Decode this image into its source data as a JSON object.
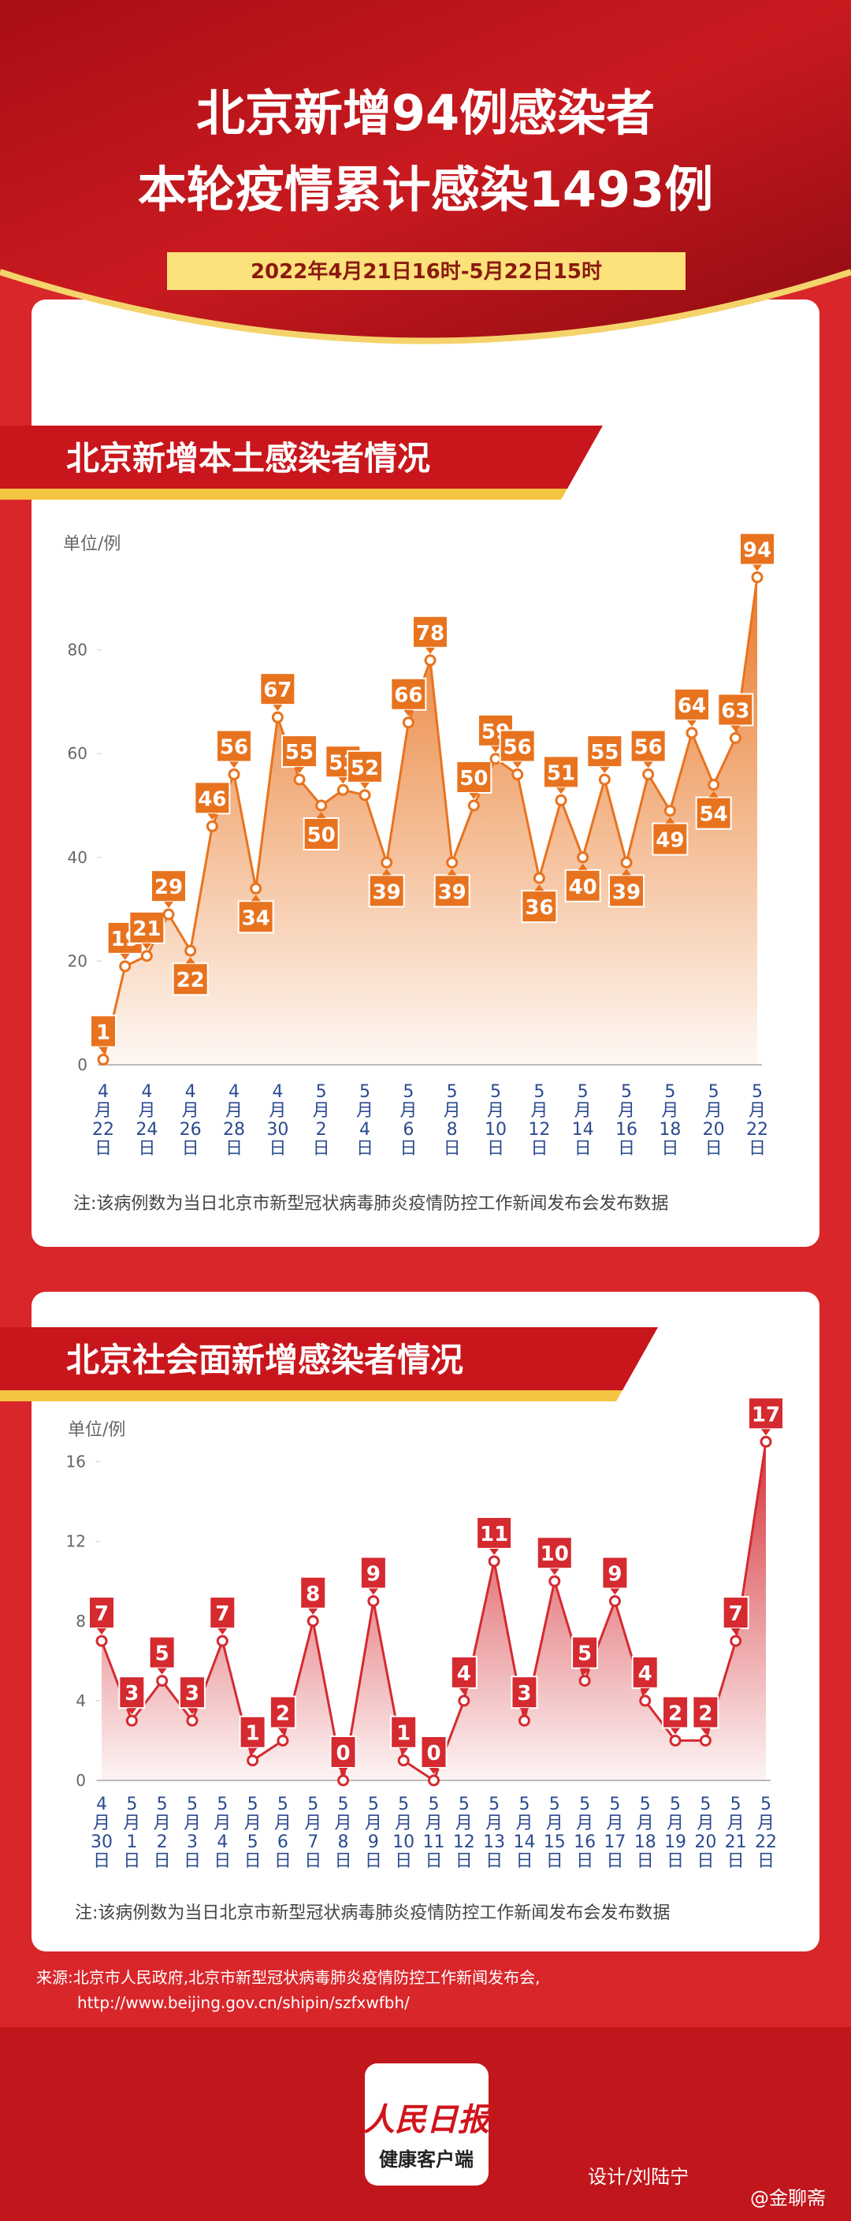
{
  "header": {
    "title_lines": [
      "北京新增94例感染者",
      "本轮疫情累计感染1493例"
    ],
    "date_range": "2022年4月21日16时-5月22日15时"
  },
  "chart_data": [
    {
      "type": "area",
      "title": "北京新增本土感染者情况",
      "unit_label": "单位/例",
      "categories": [
        "4月22日",
        null,
        "4月24日",
        null,
        "4月26日",
        null,
        "4月28日",
        null,
        "4月30日",
        null,
        "5月2日",
        null,
        "5月4日",
        null,
        "5月6日",
        null,
        "5月8日",
        null,
        "5月10日",
        null,
        "5月12日",
        null,
        "5月14日",
        null,
        "5月16日",
        null,
        "5月18日",
        null,
        "5月20日",
        null,
        "5月22日"
      ],
      "values": [
        1,
        19,
        21,
        29,
        22,
        46,
        56,
        34,
        67,
        55,
        50,
        53,
        52,
        39,
        66,
        78,
        39,
        50,
        59,
        56,
        36,
        51,
        40,
        55,
        39,
        56,
        49,
        64,
        54,
        63,
        94
      ],
      "color": "#e8731f",
      "ylim": [
        0,
        100
      ],
      "yticks": [
        0,
        20,
        40,
        60,
        80
      ],
      "note": "注:该病例数为当日北京市新型冠状病毒肺炎疫情防控工作新闻发布会发布数据"
    },
    {
      "type": "area",
      "title": "北京社会面新增感染者情况",
      "unit_label": "单位/例",
      "categories": [
        "4月30日",
        "5月1日",
        "5月2日",
        "5月3日",
        "5月4日",
        "5月5日",
        "5月6日",
        "5月7日",
        "5月8日",
        "5月9日",
        "5月10日",
        "5月11日",
        "5月12日",
        "5月13日",
        "5月14日",
        "5月15日",
        "5月16日",
        "5月17日",
        "5月18日",
        "5月19日",
        "5月20日",
        "5月21日",
        "5月22日"
      ],
      "values": [
        7,
        3,
        5,
        3,
        7,
        1,
        2,
        8,
        0,
        9,
        1,
        0,
        4,
        11,
        3,
        10,
        5,
        9,
        4,
        2,
        2,
        7,
        17
      ],
      "color": "#d42a30",
      "ylim": [
        0,
        18
      ],
      "yticks": [
        0,
        4,
        8,
        12,
        16
      ],
      "note": "注:该病例数为当日北京市新型冠状病毒肺炎疫情防控工作新闻发布会发布数据"
    }
  ],
  "footer": {
    "source_lines": [
      "来源:北京市人民政府,北京市新型冠状病毒肺炎疫情防控工作新闻发布会,",
      "http://www.beijing.gov.cn/shipin/szfxwfbh/"
    ],
    "logo_brand": "人民日报",
    "logo_subtitle": "健康客户端",
    "designer": "设计/刘陆宁",
    "watermark": "@金聊斋"
  }
}
